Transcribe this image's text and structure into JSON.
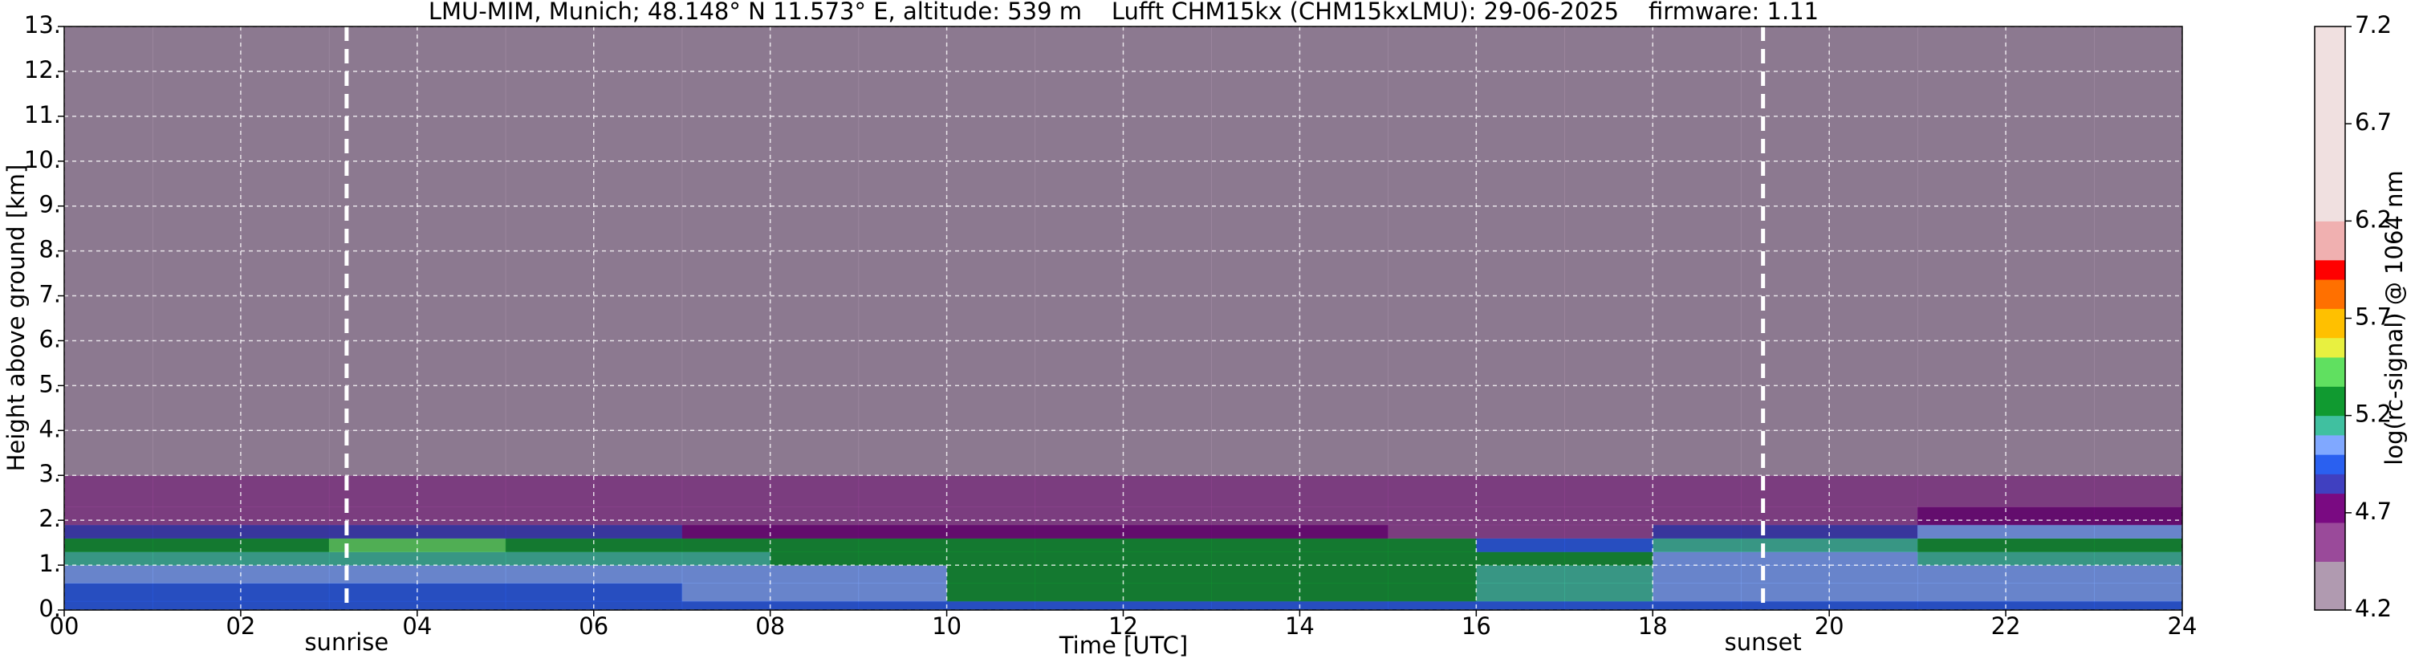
{
  "chart_data": {
    "type": "heatmap",
    "title": "LMU-MIM, Munich; 48.148° N 11.573° E, altitude: 539 m    Lufft CHM15kx (CHM15kxLMU): 29-06-2025    firmware: 1.11",
    "xlabel": "Time [UTC]",
    "ylabel": "Height above ground [km]",
    "colorbar_label": "log(rc-signal) @ 1064 nm",
    "xlim": [
      0,
      24
    ],
    "ylim": [
      0,
      13
    ],
    "xticks": [
      {
        "value": 0,
        "label": "00"
      },
      {
        "value": 2,
        "label": "02"
      },
      {
        "value": 4,
        "label": "04"
      },
      {
        "value": 6,
        "label": "06"
      },
      {
        "value": 8,
        "label": "08"
      },
      {
        "value": 10,
        "label": "10"
      },
      {
        "value": 12,
        "label": "12"
      },
      {
        "value": 14,
        "label": "14"
      },
      {
        "value": 16,
        "label": "16"
      },
      {
        "value": 18,
        "label": "18"
      },
      {
        "value": 20,
        "label": "20"
      },
      {
        "value": 22,
        "label": "22"
      },
      {
        "value": 24,
        "label": "24"
      }
    ],
    "yticks": [
      {
        "value": 0,
        "label": "0."
      },
      {
        "value": 1,
        "label": "1."
      },
      {
        "value": 2,
        "label": "2."
      },
      {
        "value": 3,
        "label": "3."
      },
      {
        "value": 4,
        "label": "4."
      },
      {
        "value": 5,
        "label": "5."
      },
      {
        "value": 6,
        "label": "6."
      },
      {
        "value": 7,
        "label": "7."
      },
      {
        "value": 8,
        "label": "8."
      },
      {
        "value": 9,
        "label": "9."
      },
      {
        "value": 10,
        "label": "10."
      },
      {
        "value": 11,
        "label": "11."
      },
      {
        "value": 12,
        "label": "12."
      },
      {
        "value": 13,
        "label": "13."
      }
    ],
    "clim": [
      4.2,
      7.2
    ],
    "cticks": [
      4.2,
      4.7,
      5.2,
      5.7,
      6.2,
      6.7,
      7.2
    ],
    "colormap": [
      {
        "value": 4.2,
        "color": "#b09ab0"
      },
      {
        "value": 4.45,
        "color": "#9a4a9a"
      },
      {
        "value": 4.65,
        "color": "#7a0a82"
      },
      {
        "value": 4.8,
        "color": "#4040c0"
      },
      {
        "value": 4.9,
        "color": "#2a60f0"
      },
      {
        "value": 5.0,
        "color": "#80a8ff"
      },
      {
        "value": 5.1,
        "color": "#40c0a0"
      },
      {
        "value": 5.2,
        "color": "#109a30"
      },
      {
        "value": 5.35,
        "color": "#60e060"
      },
      {
        "value": 5.5,
        "color": "#e8f040"
      },
      {
        "value": 5.6,
        "color": "#ffc000"
      },
      {
        "value": 5.75,
        "color": "#ff7000"
      },
      {
        "value": 5.9,
        "color": "#ff0000"
      },
      {
        "value": 6.0,
        "color": "#f0b0b0"
      },
      {
        "value": 6.2,
        "color": "#f0e0e0"
      },
      {
        "value": 7.2,
        "color": "#ffffff"
      }
    ],
    "grid": true,
    "annotations": [
      {
        "text": "sunrise",
        "x": 3.2
      },
      {
        "text": "sunset",
        "x": 19.25
      }
    ],
    "x_bins": [
      0,
      1,
      2,
      3,
      4,
      5,
      6,
      7,
      8,
      9,
      10,
      11,
      12,
      13,
      14,
      15,
      16,
      17,
      18,
      19,
      20,
      21,
      22,
      23,
      24
    ],
    "y_bins": [
      0,
      0.2,
      0.6,
      1.0,
      1.3,
      1.6,
      1.9,
      2.3,
      3.0,
      4.0,
      13.0
    ],
    "z": [
      [
        4.9,
        4.9,
        4.9,
        4.9,
        4.9,
        4.9,
        4.9,
        4.9,
        4.9,
        4.9,
        4.9,
        4.9,
        4.9,
        4.9,
        4.9,
        4.9,
        4.9,
        4.9,
        4.9,
        4.9,
        4.9,
        4.9,
        4.9,
        4.9
      ],
      [
        4.9,
        4.9,
        4.9,
        4.9,
        4.9,
        4.9,
        4.9,
        5.0,
        5.0,
        5.0,
        5.2,
        5.2,
        5.2,
        5.2,
        5.2,
        5.2,
        5.1,
        5.1,
        5.0,
        5.0,
        5.0,
        5.0,
        5.0,
        5.0
      ],
      [
        5.0,
        5.0,
        5.0,
        5.0,
        5.0,
        5.0,
        5.0,
        5.0,
        5.05,
        5.05,
        5.25,
        5.25,
        5.25,
        5.25,
        5.25,
        5.25,
        5.15,
        5.15,
        5.0,
        5.0,
        5.0,
        5.0,
        5.0,
        5.0
      ],
      [
        5.1,
        5.1,
        5.1,
        5.1,
        5.1,
        5.1,
        5.1,
        5.1,
        5.3,
        5.3,
        5.3,
        5.3,
        5.3,
        5.3,
        5.3,
        5.3,
        5.3,
        5.3,
        5.05,
        5.05,
        5.05,
        5.1,
        5.1,
        5.1
      ],
      [
        5.3,
        5.3,
        5.3,
        5.45,
        5.45,
        5.25,
        5.25,
        5.25,
        5.3,
        5.3,
        5.25,
        5.25,
        5.25,
        5.25,
        5.25,
        5.25,
        4.9,
        4.9,
        5.1,
        5.1,
        5.1,
        5.3,
        5.3,
        5.3
      ],
      [
        4.85,
        4.85,
        4.85,
        4.85,
        4.85,
        4.85,
        4.85,
        4.75,
        4.75,
        4.75,
        4.75,
        4.75,
        4.75,
        4.75,
        4.75,
        4.6,
        4.6,
        4.6,
        4.8,
        4.8,
        4.8,
        5.0,
        5.0,
        5.0
      ],
      [
        4.6,
        4.6,
        4.6,
        4.6,
        4.6,
        4.6,
        4.6,
        4.6,
        4.6,
        4.6,
        4.6,
        4.6,
        4.6,
        4.6,
        4.6,
        4.6,
        4.6,
        4.6,
        4.6,
        4.6,
        4.6,
        4.7,
        4.7,
        4.7
      ],
      [
        4.5,
        4.5,
        4.5,
        4.5,
        4.5,
        4.5,
        4.5,
        4.5,
        4.5,
        4.5,
        4.5,
        4.5,
        4.5,
        4.5,
        4.5,
        4.5,
        4.5,
        4.5,
        4.5,
        4.5,
        4.6,
        4.6,
        4.6,
        4.6
      ],
      [
        4.4,
        4.4,
        4.4,
        4.4,
        4.4,
        4.4,
        4.4,
        4.4,
        4.4,
        4.4,
        4.4,
        4.4,
        4.4,
        4.4,
        4.4,
        4.4,
        4.4,
        4.4,
        4.4,
        4.4,
        4.4,
        4.4,
        4.4,
        4.4
      ],
      [
        4.35,
        4.35,
        4.35,
        4.35,
        4.35,
        4.35,
        4.35,
        4.35,
        4.35,
        4.35,
        4.35,
        4.35,
        4.35,
        4.35,
        4.35,
        4.35,
        4.35,
        4.35,
        4.35,
        4.35,
        4.35,
        4.35,
        4.35,
        4.35
      ]
    ]
  }
}
